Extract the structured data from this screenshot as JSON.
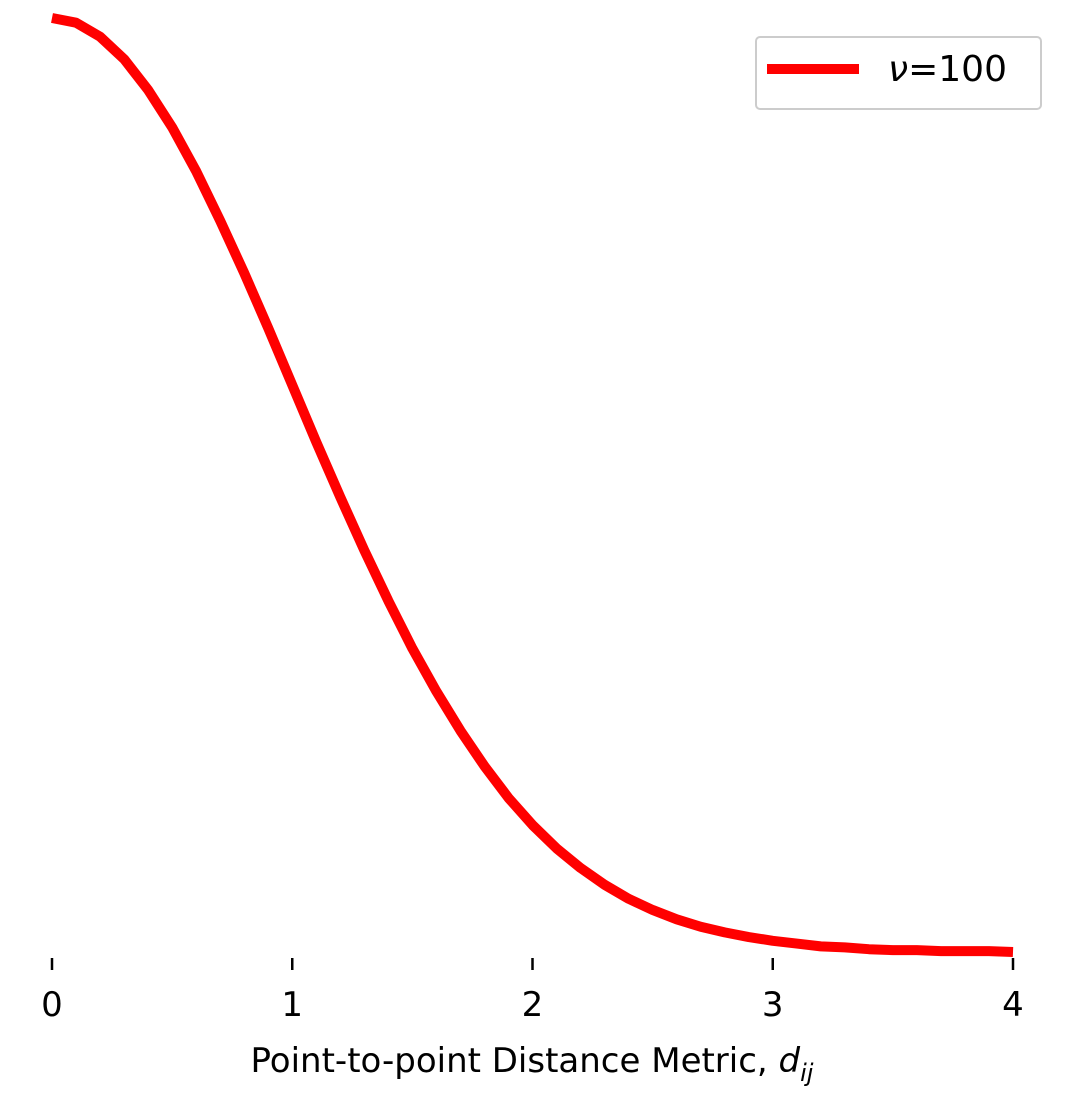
{
  "chart_data": {
    "type": "line",
    "title": "",
    "xlabel": "Point-to-point Distance Metric, ",
    "xlabel_math_base": "d",
    "xlabel_math_sub": "ij",
    "ylabel": "",
    "xlim": [
      0,
      4
    ],
    "ylim": [
      0,
      1
    ],
    "x_ticks": [
      "0",
      "1",
      "2",
      "3",
      "4"
    ],
    "grid": false,
    "legend_position": "top-right",
    "series": [
      {
        "name_symbol": "ν",
        "name_rest": "=100",
        "color": "#ff0000",
        "x": [
          0,
          0.1,
          0.2,
          0.3,
          0.4,
          0.5,
          0.6,
          0.7,
          0.8,
          0.9,
          1.0,
          1.1,
          1.2,
          1.3,
          1.4,
          1.5,
          1.6,
          1.7,
          1.8,
          1.9,
          2.0,
          2.1,
          2.2,
          2.3,
          2.4,
          2.5,
          2.6,
          2.7,
          2.8,
          2.9,
          3.0,
          3.1,
          3.2,
          3.3,
          3.4,
          3.5,
          3.6,
          3.7,
          3.8,
          3.9,
          4.0
        ],
        "y": [
          1.0,
          0.995,
          0.98,
          0.956,
          0.923,
          0.883,
          0.836,
          0.783,
          0.727,
          0.668,
          0.607,
          0.546,
          0.487,
          0.43,
          0.376,
          0.325,
          0.279,
          0.237,
          0.199,
          0.165,
          0.136,
          0.111,
          0.09,
          0.072,
          0.057,
          0.045,
          0.035,
          0.027,
          0.021,
          0.016,
          0.012,
          0.009,
          0.006,
          0.005,
          0.003,
          0.002,
          0.002,
          0.001,
          0.001,
          0.001,
          0.0
        ]
      }
    ]
  }
}
